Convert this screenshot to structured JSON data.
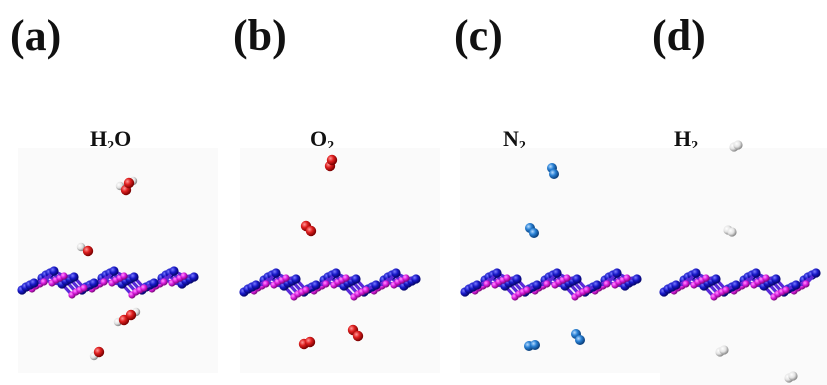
{
  "panels": [
    {
      "letter": "(a)",
      "molecule": "H",
      "sub": "2",
      "suffix": "O",
      "kind": "h2o"
    },
    {
      "letter": "(b)",
      "molecule": "O",
      "sub": "2",
      "suffix": "",
      "kind": "o2"
    },
    {
      "letter": "(c)",
      "molecule": "N",
      "sub": "2",
      "suffix": "",
      "kind": "n2"
    },
    {
      "letter": "(d)",
      "molecule": "H",
      "sub": "2",
      "suffix": "",
      "kind": "h2"
    }
  ],
  "colors": {
    "oxygen": "#d81818",
    "nitrogen": "#1f74c8",
    "hydrogen": "#eeeeee",
    "sheet_blue": "#1a1ad0",
    "sheet_magenta": "#e020e0"
  }
}
